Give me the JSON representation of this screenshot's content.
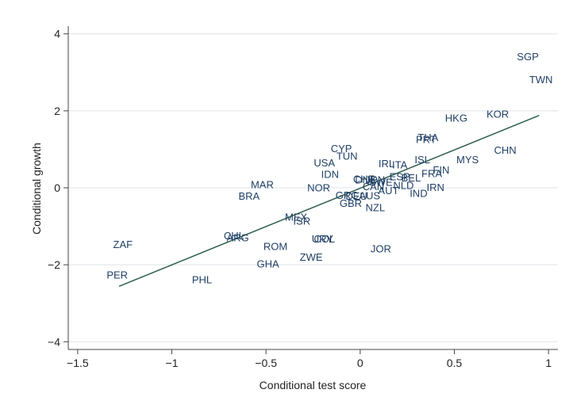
{
  "chart_data": {
    "type": "scatter",
    "title": "",
    "xlabel": "Conditional test score",
    "ylabel": "Conditional growth",
    "xlim": [
      -1.55,
      1.05
    ],
    "ylim": [
      -4.2,
      4.2
    ],
    "xticks": [
      -1.5,
      -1,
      -0.5,
      0,
      0.5,
      1
    ],
    "xtick_labels": [
      "−1.5",
      "−1",
      "−0.5",
      "0",
      "0.5",
      "1"
    ],
    "yticks": [
      -4,
      -2,
      0,
      2,
      4
    ],
    "ytick_labels": [
      "−4",
      "−2",
      "0",
      "2",
      "4"
    ],
    "grid": "horizontal",
    "colors": {
      "points": "#1f3f66",
      "fit_line": "#2e5e4e",
      "grid": "#dde3e8"
    },
    "fit_line": {
      "x": [
        -1.28,
        0.95
      ],
      "y": [
        -2.56,
        1.88
      ]
    },
    "points": [
      {
        "label": "SGP",
        "x": 0.89,
        "y": 3.4
      },
      {
        "label": "TWN",
        "x": 0.96,
        "y": 2.8
      },
      {
        "label": "KOR",
        "x": 0.73,
        "y": 1.9
      },
      {
        "label": "HKG",
        "x": 0.51,
        "y": 1.8
      },
      {
        "label": "CHN",
        "x": 0.77,
        "y": 0.97
      },
      {
        "label": "MYS",
        "x": 0.57,
        "y": 0.72
      },
      {
        "label": "THA",
        "x": 0.36,
        "y": 1.3
      },
      {
        "label": "PRT",
        "x": 0.35,
        "y": 1.25
      },
      {
        "label": "ISL",
        "x": 0.33,
        "y": 0.72
      },
      {
        "label": "FIN",
        "x": 0.43,
        "y": 0.45
      },
      {
        "label": "FRA",
        "x": 0.38,
        "y": 0.36
      },
      {
        "label": "IRN",
        "x": 0.4,
        "y": 0.0
      },
      {
        "label": "IND",
        "x": 0.31,
        "y": -0.15
      },
      {
        "label": "CYP",
        "x": -0.1,
        "y": 1.01
      },
      {
        "label": "TUN",
        "x": -0.07,
        "y": 0.81
      },
      {
        "label": "USA",
        "x": -0.19,
        "y": 0.64
      },
      {
        "label": "IDN",
        "x": -0.16,
        "y": 0.34
      },
      {
        "label": "IRL",
        "x": 0.14,
        "y": 0.62
      },
      {
        "label": "ITA",
        "x": 0.21,
        "y": 0.59
      },
      {
        "label": "ESP",
        "x": 0.21,
        "y": 0.28
      },
      {
        "label": "BEL",
        "x": 0.27,
        "y": 0.25
      },
      {
        "label": "NLD",
        "x": 0.23,
        "y": 0.05
      },
      {
        "label": "AUT",
        "x": 0.15,
        "y": -0.08
      },
      {
        "label": "CHE",
        "x": 0.02,
        "y": 0.22
      },
      {
        "label": "DNK",
        "x": 0.03,
        "y": 0.2
      },
      {
        "label": "JPN",
        "x": 0.08,
        "y": 0.2
      },
      {
        "label": "SWE",
        "x": 0.11,
        "y": 0.13
      },
      {
        "label": "CAN",
        "x": 0.07,
        "y": 0.02
      },
      {
        "label": "NOR",
        "x": -0.22,
        "y": -0.01
      },
      {
        "label": "GRC",
        "x": -0.07,
        "y": -0.21
      },
      {
        "label": "DEU",
        "x": -0.02,
        "y": -0.23
      },
      {
        "label": "AUS",
        "x": 0.05,
        "y": -0.22
      },
      {
        "label": "GBR",
        "x": -0.05,
        "y": -0.41
      },
      {
        "label": "NZL",
        "x": 0.08,
        "y": -0.53
      },
      {
        "label": "MAR",
        "x": -0.52,
        "y": 0.07
      },
      {
        "label": "BRA",
        "x": -0.59,
        "y": -0.23
      },
      {
        "label": "MEX",
        "x": -0.34,
        "y": -0.77
      },
      {
        "label": "ISR",
        "x": -0.31,
        "y": -0.88
      },
      {
        "label": "ZAF",
        "x": -1.26,
        "y": -1.48
      },
      {
        "label": "PER",
        "x": -1.29,
        "y": -2.27
      },
      {
        "label": "PHL",
        "x": -0.84,
        "y": -2.4
      },
      {
        "label": "CHL",
        "x": -0.67,
        "y": -1.26
      },
      {
        "label": "ARG",
        "x": -0.65,
        "y": -1.31
      },
      {
        "label": "ROM",
        "x": -0.45,
        "y": -1.53
      },
      {
        "label": "GHA",
        "x": -0.49,
        "y": -1.99
      },
      {
        "label": "URY",
        "x": -0.2,
        "y": -1.34
      },
      {
        "label": "COL",
        "x": -0.19,
        "y": -1.34
      },
      {
        "label": "ZWE",
        "x": -0.26,
        "y": -1.81
      },
      {
        "label": "JOR",
        "x": 0.11,
        "y": -1.6
      }
    ]
  }
}
